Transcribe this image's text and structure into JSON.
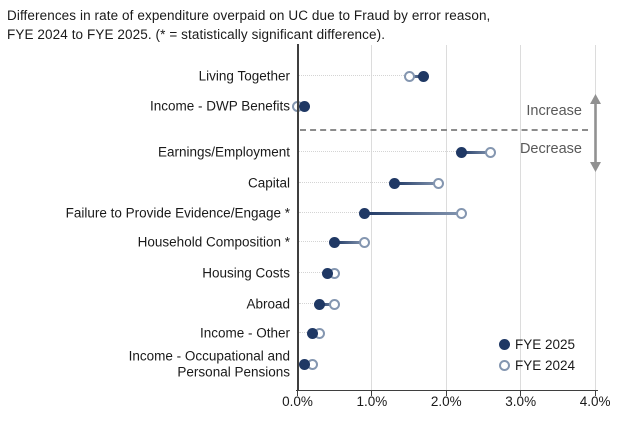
{
  "ui": {
    "title_line1": "Differences in rate of expenditure overpaid on UC due to Fraud by error reason,",
    "title_line2": "FYE 2024 to FYE 2025. (* = statistically significant difference)."
  },
  "annotations": {
    "increase": "Increase",
    "decrease": "Decrease"
  },
  "legend": {
    "items": [
      {
        "label": "FYE 2025",
        "marker": "filled"
      },
      {
        "label": "FYE 2024",
        "marker": "open"
      }
    ]
  },
  "colors": {
    "fye2025": "#1f3864",
    "fye2024": "#8496b0",
    "grid": "#dcdcdc",
    "axis": "#3f3f3f",
    "annotation_text": "#595959",
    "arrow": "#919191"
  },
  "chart_data": {
    "type": "dumbbell",
    "title": "Differences in rate of expenditure overpaid on UC due to Fraud by error reason, FYE 2024 to FYE 2025. (* = statistically significant difference).",
    "categories": [
      "Living Together",
      "Income - DWP Benefits",
      "Earnings/Employment",
      "Capital",
      "Failure to Provide Evidence/Engage *",
      "Household Composition *",
      "Housing Costs",
      "Abroad",
      "Income - Other",
      "Income - Occupational and Personal Pensions"
    ],
    "series": [
      {
        "name": "FYE 2025",
        "marker": "filled",
        "color": "#1f3864",
        "values": [
          1.7,
          0.1,
          2.2,
          1.3,
          0.9,
          0.5,
          0.4,
          0.3,
          0.2,
          0.1
        ]
      },
      {
        "name": "FYE 2024",
        "marker": "open",
        "color": "#8496b0",
        "values": [
          1.5,
          0.0,
          2.6,
          1.9,
          2.2,
          0.9,
          0.5,
          0.5,
          0.3,
          0.2
        ]
      }
    ],
    "value_unit": "%",
    "xlabel": "",
    "ylabel": "",
    "x_ticks": [
      "0.0%",
      "1.0%",
      "2.0%",
      "3.0%",
      "4.0%"
    ],
    "xlim": [
      0,
      4
    ],
    "grid": "vertical-on",
    "divider": {
      "after_category": "Income - DWP Benefits",
      "above_label": "Increase",
      "below_label": "Decrease"
    },
    "legend_position": "bottom-right"
  }
}
